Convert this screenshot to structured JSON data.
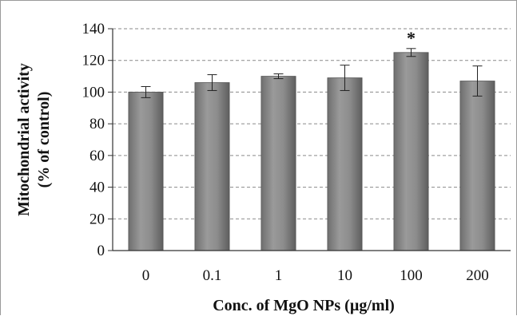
{
  "chart_data": {
    "type": "bar",
    "categories": [
      "0",
      "0.1",
      "1",
      "10",
      "100",
      "200"
    ],
    "values": [
      100,
      106,
      110,
      109,
      125,
      107
    ],
    "errors": [
      3.5,
      5,
      1.5,
      8,
      2.5,
      9.5
    ],
    "annotations": [
      {
        "category": "100",
        "text": "*"
      }
    ],
    "xlabel": "Conc. of MgO NPs (µg/ml)",
    "ylabel_line1": "Mitochondrial  activity",
    "ylabel_line2": "(% of control)",
    "ylim": [
      0,
      140
    ],
    "yticks": [
      0,
      20,
      40,
      60,
      80,
      100,
      120,
      140
    ],
    "grid": true,
    "bar_color": "#8c8c8c",
    "legend": "none"
  }
}
